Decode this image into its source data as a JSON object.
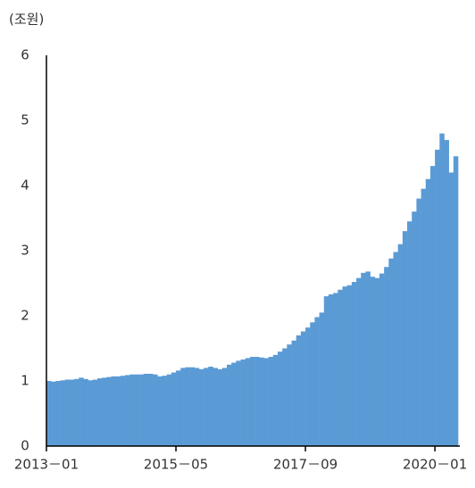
{
  "chart_data": {
    "type": "bar",
    "y_label": "(조원)",
    "color": "#5b9bd5",
    "x": [
      "2013-01",
      "2013-02",
      "2013-03",
      "2013-04",
      "2013-05",
      "2013-06",
      "2013-07",
      "2013-08",
      "2013-09",
      "2013-10",
      "2013-11",
      "2013-12",
      "2014-01",
      "2014-02",
      "2014-03",
      "2014-04",
      "2014-05",
      "2014-06",
      "2014-07",
      "2014-08",
      "2014-09",
      "2014-10",
      "2014-11",
      "2014-12",
      "2015-01",
      "2015-02",
      "2015-03",
      "2015-04",
      "2015-05",
      "2015-06",
      "2015-07",
      "2015-08",
      "2015-09",
      "2015-10",
      "2015-11",
      "2015-12",
      "2016-01",
      "2016-02",
      "2016-03",
      "2016-04",
      "2016-05",
      "2016-06",
      "2016-07",
      "2016-08",
      "2016-09",
      "2016-10",
      "2016-11",
      "2016-12",
      "2017-01",
      "2017-02",
      "2017-03",
      "2017-04",
      "2017-05",
      "2017-06",
      "2017-07",
      "2017-08",
      "2017-09",
      "2017-10",
      "2017-11",
      "2017-12",
      "2018-01",
      "2018-02",
      "2018-03",
      "2018-04",
      "2018-05",
      "2018-06",
      "2018-07",
      "2018-08",
      "2018-09",
      "2018-10",
      "2018-11",
      "2018-12",
      "2019-01",
      "2019-02",
      "2019-03",
      "2019-04",
      "2019-05",
      "2019-06",
      "2019-07",
      "2019-08",
      "2019-09",
      "2019-10",
      "2019-11",
      "2019-12",
      "2020-01",
      "2020-02",
      "2020-03",
      "2020-04",
      "2020-05"
    ],
    "values": [
      1.0,
      0.99,
      1.0,
      1.01,
      1.02,
      1.02,
      1.03,
      1.05,
      1.03,
      1.01,
      1.02,
      1.04,
      1.05,
      1.06,
      1.07,
      1.07,
      1.08,
      1.09,
      1.1,
      1.1,
      1.1,
      1.11,
      1.11,
      1.1,
      1.07,
      1.08,
      1.1,
      1.13,
      1.16,
      1.2,
      1.21,
      1.21,
      1.2,
      1.18,
      1.2,
      1.22,
      1.2,
      1.18,
      1.2,
      1.25,
      1.28,
      1.31,
      1.33,
      1.35,
      1.37,
      1.37,
      1.36,
      1.35,
      1.37,
      1.4,
      1.45,
      1.5,
      1.56,
      1.62,
      1.7,
      1.76,
      1.82,
      1.9,
      1.98,
      2.05,
      2.3,
      2.33,
      2.35,
      2.4,
      2.45,
      2.47,
      2.52,
      2.58,
      2.66,
      2.68,
      2.6,
      2.58,
      2.65,
      2.75,
      2.88,
      2.98,
      3.1,
      3.3,
      3.45,
      3.6,
      3.8,
      3.95,
      4.1,
      4.3,
      4.55,
      4.8,
      4.7,
      4.2,
      4.45
    ],
    "ylim": [
      0,
      6
    ],
    "yticks": [
      0,
      1,
      2,
      3,
      4,
      5,
      6
    ],
    "xticks": [
      {
        "value": "2013-01",
        "label": "2013－01"
      },
      {
        "value": "2015-05",
        "label": "2015－05"
      },
      {
        "value": "2017-09",
        "label": "2017－09"
      },
      {
        "value": "2020-01",
        "label": "2020－01"
      }
    ]
  }
}
